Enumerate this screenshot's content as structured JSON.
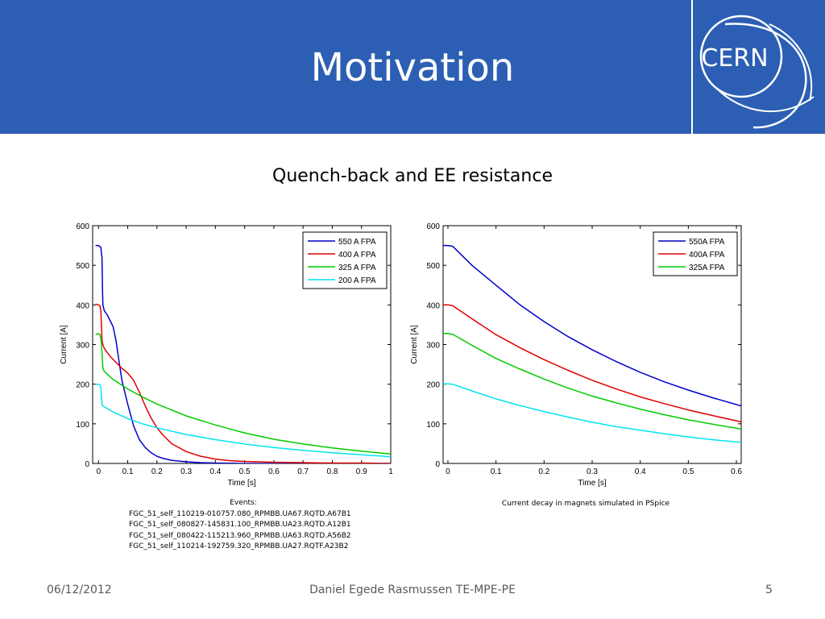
{
  "slide": {
    "title": "Motivation",
    "subtitle": "Quench-back and EE resistance",
    "footer_date": "06/12/2012",
    "footer_author": "Daniel Egede Rasmussen TE-MPE-PE",
    "footer_page": "5",
    "logo_text": "CERN",
    "header_color": "#2c5fb3",
    "left_caption_title": "Events:",
    "left_caption_lines": [
      "FGC_51_self_110219-010757.080_RPMBB.UA67.RQTD.A67B1",
      "FGC_51_self_080827-145831.100_RPMBB.UA23.RQTD.A12B1",
      "FGC_51_self_080422-115213.960_RPMBB.UA63.RQTD.A56B2",
      "FGC_51_self_110214-192759.320_RPMBB.UA27.RQTF.A23B2"
    ],
    "right_caption": "Current decay in magnets simulated in PSpice"
  },
  "chart_data": [
    {
      "type": "line",
      "xlabel": "Time [s]",
      "ylabel": "Current [A]",
      "xlim": [
        -0.02,
        1
      ],
      "ylim": [
        0,
        600
      ],
      "xticks": [
        0,
        0.1,
        0.2,
        0.3,
        0.4,
        0.5,
        0.6,
        0.7,
        0.8,
        0.9,
        1
      ],
      "xtick_labels": [
        "0",
        "0.1",
        "0.2",
        "0.3",
        "0.4",
        "0.5",
        "0.6",
        "0.7",
        "0.8",
        "0.9",
        "1"
      ],
      "yticks": [
        0,
        100,
        200,
        300,
        400,
        500,
        600
      ],
      "ytick_labels": [
        "0",
        "100",
        "200",
        "300",
        "400",
        "500",
        "600"
      ],
      "grid": false,
      "legend": "top-right",
      "series": [
        {
          "name": "550 A FPA",
          "color": "#0000cc",
          "x": [
            -0.01,
            0,
            0.008,
            0.01,
            0.012,
            0.013,
            0.014,
            0.015,
            0.02,
            0.03,
            0.04,
            0.05,
            0.06,
            0.07,
            0.08,
            0.1,
            0.12,
            0.14,
            0.16,
            0.18,
            0.2,
            0.22,
            0.25,
            0.3,
            0.35,
            0.4,
            0.5,
            0.6,
            0.7,
            0.8,
            0.9,
            1
          ],
          "y": [
            550,
            550,
            545,
            530,
            520,
            470,
            430,
            400,
            385,
            375,
            360,
            345,
            310,
            260,
            210,
            150,
            95,
            60,
            40,
            27,
            18,
            13,
            8,
            4,
            2,
            1,
            0,
            0,
            0,
            0,
            0,
            0
          ]
        },
        {
          "name": "400 A FPA",
          "color": "#e00000",
          "x": [
            -0.01,
            0,
            0.005,
            0.008,
            0.01,
            0.012,
            0.015,
            0.02,
            0.04,
            0.06,
            0.08,
            0.1,
            0.12,
            0.14,
            0.16,
            0.18,
            0.2,
            0.22,
            0.25,
            0.3,
            0.35,
            0.4,
            0.45,
            0.5,
            0.6,
            0.7,
            0.8,
            0.9,
            1
          ],
          "y": [
            402,
            400,
            398,
            385,
            350,
            310,
            300,
            290,
            270,
            255,
            240,
            228,
            210,
            180,
            145,
            115,
            90,
            72,
            50,
            30,
            18,
            11,
            7,
            5,
            3,
            2,
            1,
            1,
            0
          ]
        },
        {
          "name": "325 A FPA",
          "color": "#00cc00",
          "x": [
            -0.01,
            0,
            0.005,
            0.008,
            0.01,
            0.012,
            0.015,
            0.02,
            0.05,
            0.1,
            0.15,
            0.2,
            0.3,
            0.4,
            0.5,
            0.6,
            0.7,
            0.8,
            0.9,
            1
          ],
          "y": [
            325,
            328,
            325,
            315,
            300,
            280,
            240,
            232,
            212,
            188,
            168,
            150,
            120,
            97,
            77,
            61,
            49,
            39,
            31,
            24
          ]
        },
        {
          "name": "200 A FPA",
          "color": "#00e5ee",
          "x": [
            -0.01,
            0,
            0.005,
            0.008,
            0.01,
            0.012,
            0.015,
            0.05,
            0.1,
            0.15,
            0.2,
            0.3,
            0.4,
            0.5,
            0.6,
            0.7,
            0.8,
            0.9,
            1
          ],
          "y": [
            200,
            200,
            198,
            190,
            170,
            150,
            145,
            130,
            113,
            100,
            90,
            73,
            60,
            49,
            40,
            33,
            27,
            22,
            17
          ]
        }
      ]
    },
    {
      "type": "line",
      "xlabel": "Time [s]",
      "ylabel": "Current [A]",
      "xlim": [
        -0.01,
        0.61
      ],
      "ylim": [
        0,
        600
      ],
      "xticks": [
        0,
        0.1,
        0.2,
        0.3,
        0.4,
        0.5,
        0.6
      ],
      "xtick_labels": [
        "0",
        "0.1",
        "0.2",
        "0.3",
        "0.4",
        "0.5",
        "0.6"
      ],
      "yticks": [
        0,
        100,
        200,
        300,
        400,
        500,
        600
      ],
      "ytick_labels": [
        "0",
        "100",
        "200",
        "300",
        "400",
        "500",
        "600"
      ],
      "grid": false,
      "legend": "top-right",
      "series": [
        {
          "name": "550A FPA",
          "color": "#0000cc",
          "x": [
            -0.01,
            0,
            0.01,
            0.05,
            0.1,
            0.15,
            0.2,
            0.25,
            0.3,
            0.35,
            0.4,
            0.45,
            0.5,
            0.55,
            0.61
          ],
          "y": [
            550,
            550,
            548,
            500,
            450,
            400,
            358,
            320,
            287,
            257,
            230,
            206,
            185,
            166,
            145
          ]
        },
        {
          "name": "400A FPA",
          "color": "#e00000",
          "x": [
            -0.01,
            0,
            0.01,
            0.05,
            0.1,
            0.15,
            0.2,
            0.25,
            0.3,
            0.35,
            0.4,
            0.45,
            0.5,
            0.55,
            0.61
          ],
          "y": [
            400,
            400,
            398,
            365,
            325,
            292,
            262,
            235,
            210,
            188,
            168,
            151,
            135,
            121,
            105
          ]
        },
        {
          "name": "325A FPA",
          "color": "#00cc00",
          "x": [
            -0.01,
            0,
            0.01,
            0.05,
            0.1,
            0.15,
            0.2,
            0.25,
            0.3,
            0.35,
            0.4,
            0.45,
            0.5,
            0.55,
            0.61
          ],
          "y": [
            328,
            328,
            326,
            298,
            265,
            238,
            213,
            190,
            170,
            153,
            137,
            123,
            110,
            99,
            87
          ]
        },
        {
          "name": "",
          "color": "#00e5ee",
          "x": [
            -0.01,
            0,
            0.01,
            0.05,
            0.1,
            0.15,
            0.2,
            0.25,
            0.3,
            0.35,
            0.4,
            0.45,
            0.5,
            0.55,
            0.61
          ],
          "y": [
            201,
            201,
            200,
            183,
            163,
            146,
            131,
            117,
            104,
            93,
            84,
            75,
            67,
            60,
            53
          ]
        }
      ]
    }
  ]
}
